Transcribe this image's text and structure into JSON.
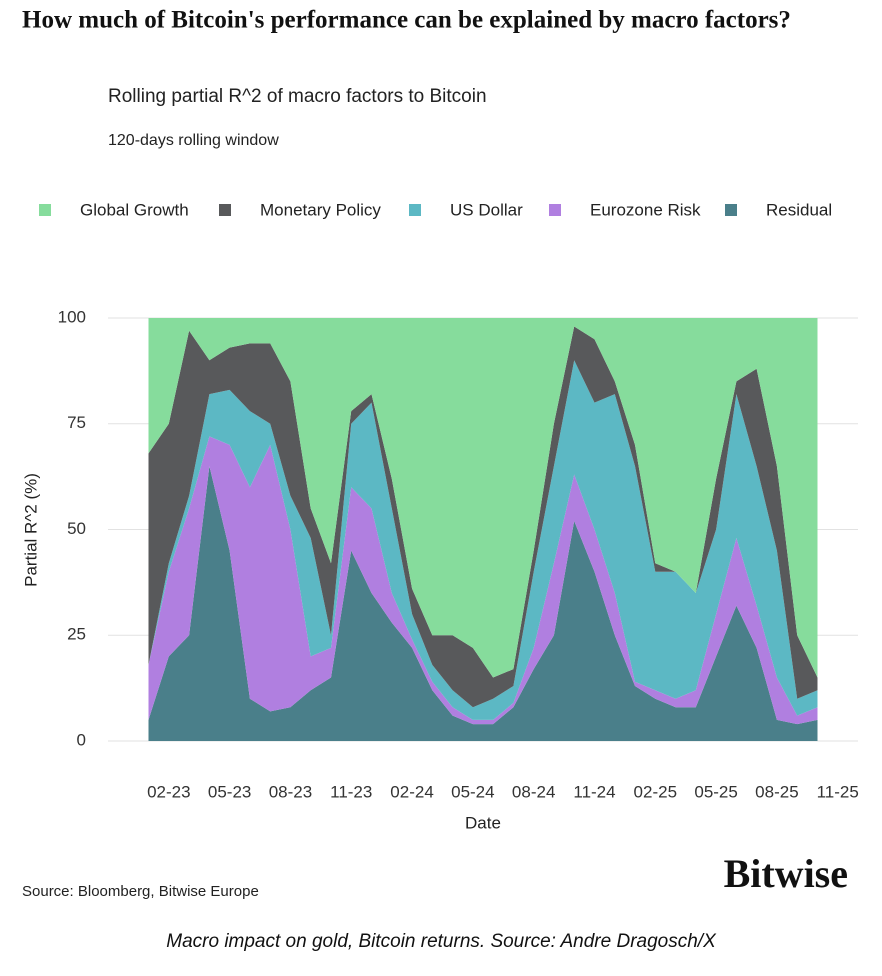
{
  "chart_data": {
    "type": "stacked_area",
    "title": "How much of Bitcoin's performance can be explained by macro factors?",
    "subtitle": "Rolling partial R^2 of macro factors to Bitcoin",
    "note": "120-days rolling window",
    "y_label": "Partial R^2 (%)",
    "x_label": "Date",
    "source": "Source: Bloomberg, Bitwise Europe",
    "logo": "Bitwise",
    "caption": "Macro impact on gold, Bitcoin returns. Source: Andre Dragosch/X",
    "x": [
      "01-23",
      "02-23",
      "03-23",
      "04-23",
      "05-23",
      "06-23",
      "07-23",
      "08-23",
      "09-23",
      "10-23",
      "11-23",
      "12-23",
      "01-24",
      "02-24",
      "03-24",
      "04-24",
      "05-24",
      "06-24",
      "07-24",
      "08-24",
      "09-24",
      "10-24",
      "11-24",
      "12-24",
      "01-25",
      "02-25",
      "03-25",
      "04-25",
      "05-25",
      "06-25",
      "07-25",
      "08-25",
      "09-25",
      "10-25"
    ],
    "series": [
      {
        "name": "Global Growth",
        "color": "#86dc9c",
        "values": [
          32,
          25,
          3,
          10,
          7,
          6,
          6,
          15,
          45,
          58,
          22,
          18,
          38,
          64,
          75,
          75,
          78,
          85,
          83,
          55,
          25,
          2,
          5,
          15,
          30,
          58,
          60,
          65,
          38,
          15,
          12,
          35,
          75,
          85
        ]
      },
      {
        "name": "Monetary Policy",
        "color": "#58595b",
        "values": [
          50,
          33,
          39,
          8,
          10,
          16,
          19,
          27,
          7,
          17,
          3,
          2,
          7,
          6,
          7,
          13,
          14,
          5,
          4,
          5,
          10,
          8,
          15,
          3,
          5,
          2,
          0,
          0,
          12,
          3,
          23,
          20,
          15,
          3
        ]
      },
      {
        "name": "US Dollar",
        "color": "#5cb8c4",
        "values": [
          0,
          2,
          3,
          10,
          13,
          18,
          5,
          8,
          28,
          3,
          15,
          25,
          20,
          6,
          4,
          4,
          3,
          5,
          4,
          18,
          23,
          27,
          30,
          47,
          51,
          28,
          30,
          23,
          20,
          34,
          33,
          30,
          4,
          4
        ]
      },
      {
        "name": "Eurozone Risk",
        "color": "#b07fe0",
        "values": [
          13,
          20,
          30,
          7,
          25,
          50,
          63,
          42,
          8,
          7,
          15,
          20,
          7,
          2,
          2,
          2,
          1,
          1,
          1,
          5,
          17,
          11,
          10,
          10,
          1,
          2,
          2,
          4,
          10,
          16,
          10,
          10,
          2,
          3
        ]
      },
      {
        "name": "Residual",
        "color": "#4a7f8a",
        "values": [
          5,
          20,
          25,
          65,
          45,
          10,
          7,
          8,
          12,
          15,
          45,
          35,
          28,
          22,
          12,
          6,
          4,
          4,
          8,
          17,
          25,
          52,
          40,
          25,
          13,
          10,
          8,
          8,
          20,
          32,
          22,
          5,
          4,
          5
        ]
      }
    ],
    "xlim": [
      "11-22",
      "12-25"
    ],
    "xticks": [
      "02-23",
      "05-23",
      "08-23",
      "11-23",
      "02-24",
      "05-24",
      "08-24",
      "11-24",
      "02-25",
      "05-25",
      "08-25",
      "11-25"
    ],
    "ylim": [
      0,
      100
    ],
    "yticks": [
      0,
      25,
      50,
      75,
      100
    ],
    "grid": true
  }
}
